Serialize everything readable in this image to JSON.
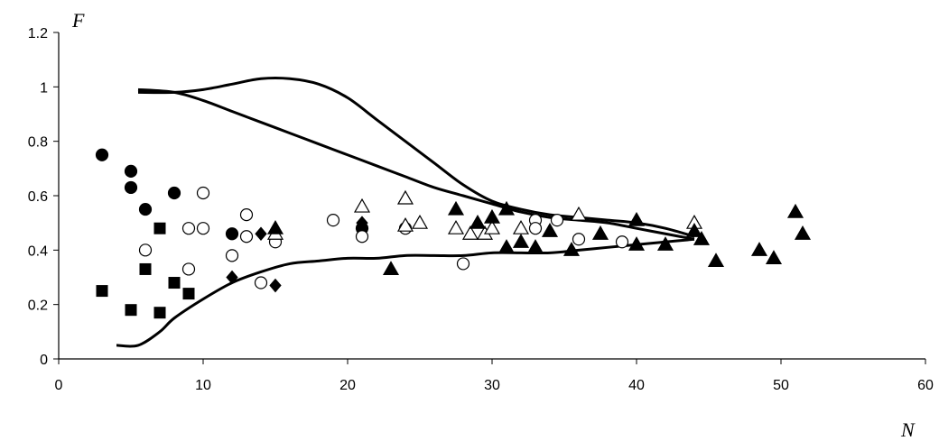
{
  "chart_data": {
    "type": "scatter",
    "title": "",
    "xlabel": "N",
    "ylabel": "F",
    "xlim": [
      0,
      60
    ],
    "ylim": [
      0,
      1.2
    ],
    "xticks": [
      "0",
      "10",
      "20",
      "30",
      "40",
      "50",
      "60"
    ],
    "yticks": [
      "0",
      "0.2",
      "0.4",
      "0.6",
      "0.8",
      "1",
      "1.2"
    ],
    "grid": false,
    "legend": "none",
    "series": [
      {
        "marker": "filled-circle",
        "points": [
          [
            3,
            0.75
          ],
          [
            5,
            0.69
          ],
          [
            5,
            0.63
          ],
          [
            6,
            0.55
          ],
          [
            8,
            0.61
          ],
          [
            12,
            0.46
          ],
          [
            21,
            0.48
          ]
        ]
      },
      {
        "marker": "filled-square",
        "points": [
          [
            3,
            0.25
          ],
          [
            5,
            0.18
          ],
          [
            6,
            0.33
          ],
          [
            7,
            0.48
          ],
          [
            7,
            0.17
          ],
          [
            8,
            0.28
          ],
          [
            9,
            0.24
          ]
        ]
      },
      {
        "marker": "filled-diamond",
        "points": [
          [
            12,
            0.3
          ],
          [
            14,
            0.46
          ],
          [
            15,
            0.27
          ],
          [
            21,
            0.5
          ]
        ]
      },
      {
        "marker": "open-circle",
        "points": [
          [
            6,
            0.4
          ],
          [
            9,
            0.48
          ],
          [
            9,
            0.33
          ],
          [
            10,
            0.61
          ],
          [
            10,
            0.48
          ],
          [
            12,
            0.38
          ],
          [
            13,
            0.53
          ],
          [
            13,
            0.45
          ],
          [
            14,
            0.28
          ],
          [
            15,
            0.43
          ],
          [
            19,
            0.51
          ],
          [
            21,
            0.45
          ],
          [
            24,
            0.48
          ],
          [
            28,
            0.35
          ],
          [
            33,
            0.51
          ],
          [
            33,
            0.48
          ],
          [
            34.5,
            0.51
          ],
          [
            36,
            0.44
          ],
          [
            39,
            0.43
          ]
        ]
      },
      {
        "marker": "open-triangle",
        "points": [
          [
            15,
            0.46
          ],
          [
            21,
            0.56
          ],
          [
            24,
            0.59
          ],
          [
            24,
            0.49
          ],
          [
            25,
            0.5
          ],
          [
            27.5,
            0.48
          ],
          [
            28.5,
            0.46
          ],
          [
            29.5,
            0.46
          ],
          [
            30,
            0.48
          ],
          [
            32,
            0.48
          ],
          [
            36,
            0.53
          ],
          [
            44,
            0.5
          ]
        ]
      },
      {
        "marker": "filled-triangle",
        "points": [
          [
            15,
            0.48
          ],
          [
            23,
            0.33
          ],
          [
            27.5,
            0.55
          ],
          [
            29,
            0.5
          ],
          [
            30,
            0.52
          ],
          [
            31,
            0.41
          ],
          [
            31,
            0.55
          ],
          [
            32,
            0.43
          ],
          [
            33,
            0.41
          ],
          [
            34,
            0.47
          ],
          [
            35.5,
            0.4
          ],
          [
            37.5,
            0.46
          ],
          [
            40,
            0.42
          ],
          [
            40,
            0.51
          ],
          [
            42,
            0.42
          ],
          [
            44,
            0.47
          ],
          [
            44.5,
            0.44
          ],
          [
            45.5,
            0.36
          ],
          [
            48.5,
            0.4
          ],
          [
            49.5,
            0.37
          ],
          [
            51,
            0.54
          ],
          [
            51.5,
            0.46
          ]
        ]
      }
    ],
    "curves": [
      {
        "name": "",
        "points": [
          [
            5.5,
            0.98
          ],
          [
            8,
            0.98
          ],
          [
            10,
            0.99
          ],
          [
            12,
            1.01
          ],
          [
            14,
            1.03
          ],
          [
            16,
            1.03
          ],
          [
            18,
            1.01
          ],
          [
            20,
            0.96
          ],
          [
            22,
            0.88
          ],
          [
            24,
            0.8
          ],
          [
            26,
            0.72
          ],
          [
            28,
            0.64
          ],
          [
            30,
            0.58
          ],
          [
            32,
            0.55
          ],
          [
            34,
            0.53
          ],
          [
            36,
            0.52
          ],
          [
            38,
            0.51
          ],
          [
            40,
            0.5
          ],
          [
            42,
            0.48
          ],
          [
            44,
            0.45
          ]
        ]
      },
      {
        "name": "",
        "points": [
          [
            5.5,
            0.99
          ],
          [
            8,
            0.98
          ],
          [
            10,
            0.95
          ],
          [
            12,
            0.91
          ],
          [
            14,
            0.87
          ],
          [
            16,
            0.83
          ],
          [
            18,
            0.79
          ],
          [
            20,
            0.75
          ],
          [
            22,
            0.71
          ],
          [
            24,
            0.67
          ],
          [
            26,
            0.63
          ],
          [
            28,
            0.6
          ],
          [
            30,
            0.57
          ],
          [
            32,
            0.54
          ],
          [
            34,
            0.52
          ],
          [
            36,
            0.51
          ],
          [
            38,
            0.5
          ],
          [
            40,
            0.48
          ],
          [
            42,
            0.46
          ],
          [
            44,
            0.44
          ]
        ]
      },
      {
        "name": "",
        "points": [
          [
            4,
            0.05
          ],
          [
            5.5,
            0.05
          ],
          [
            7,
            0.1
          ],
          [
            8,
            0.15
          ],
          [
            10,
            0.22
          ],
          [
            12,
            0.28
          ],
          [
            14,
            0.32
          ],
          [
            16,
            0.35
          ],
          [
            18,
            0.36
          ],
          [
            20,
            0.37
          ],
          [
            22,
            0.37
          ],
          [
            24,
            0.38
          ],
          [
            26,
            0.38
          ],
          [
            28,
            0.38
          ],
          [
            30,
            0.39
          ],
          [
            32,
            0.39
          ],
          [
            34,
            0.39
          ],
          [
            36,
            0.4
          ],
          [
            38,
            0.41
          ],
          [
            40,
            0.42
          ],
          [
            42,
            0.43
          ],
          [
            44,
            0.44
          ]
        ]
      }
    ]
  }
}
